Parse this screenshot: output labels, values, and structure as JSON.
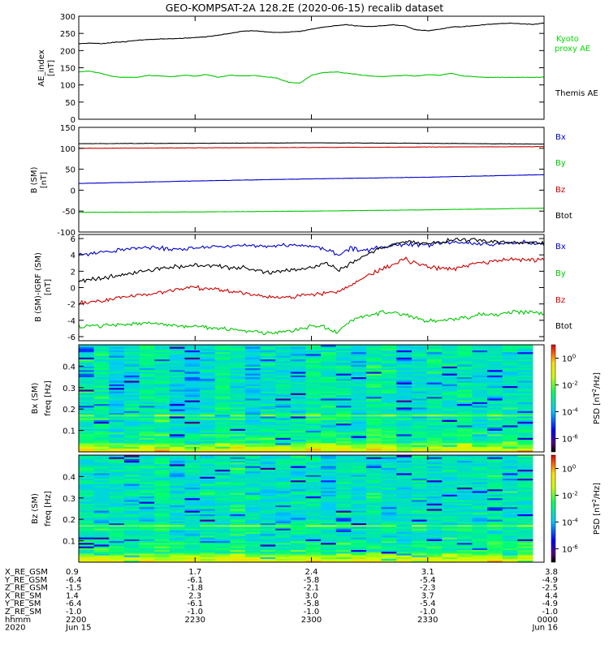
{
  "figure_title": "GEO-KOMPSAT-2A 128.2E (2020-06-15) recalib dataset",
  "colors": {
    "black": "#000000",
    "blue": "#0000cc",
    "red": "#cc0000",
    "green": "#00c800",
    "kyoto": "#00dd00"
  },
  "chart_data": [
    {
      "type": "line",
      "ylabel": [
        "AE_index",
        "[nT]"
      ],
      "ylim": [
        0,
        300
      ],
      "yticks": [
        0,
        50,
        100,
        150,
        200,
        250,
        300
      ],
      "xlim": [
        0,
        120
      ],
      "series": [
        {
          "name": "Kyoto proxy AE",
          "color": "#00c800",
          "x": [
            0,
            3,
            6,
            9,
            12,
            15,
            18,
            21,
            24,
            27,
            30,
            33,
            36,
            39,
            42,
            45,
            48,
            51,
            54,
            57,
            60,
            63,
            66,
            69,
            72,
            75,
            78,
            81,
            84,
            87,
            90,
            93,
            96,
            99,
            102,
            105,
            108,
            111,
            114,
            117,
            120
          ],
          "y": [
            138,
            140,
            133,
            124,
            122,
            122,
            128,
            126,
            124,
            128,
            126,
            130,
            122,
            128,
            126,
            128,
            124,
            120,
            108,
            105,
            128,
            136,
            138,
            134,
            130,
            126,
            124,
            126,
            128,
            126,
            130,
            128,
            134,
            126,
            124,
            122,
            122,
            122,
            122,
            122,
            122
          ]
        },
        {
          "name": "Themis AE",
          "color": "#000000",
          "x": [
            0,
            3,
            6,
            9,
            12,
            15,
            18,
            21,
            24,
            27,
            30,
            33,
            36,
            39,
            42,
            45,
            48,
            51,
            54,
            57,
            60,
            63,
            66,
            69,
            72,
            75,
            78,
            81,
            84,
            87,
            90,
            93,
            96,
            99,
            102,
            105,
            108,
            111,
            114,
            117,
            120
          ],
          "y": [
            220,
            222,
            220,
            224,
            226,
            230,
            232,
            234,
            234,
            236,
            238,
            240,
            245,
            250,
            256,
            258,
            255,
            252,
            254,
            256,
            262,
            268,
            272,
            275,
            272,
            270,
            272,
            275,
            272,
            260,
            258,
            262,
            268,
            270,
            272,
            276,
            278,
            280,
            278,
            276,
            280
          ]
        }
      ],
      "legend": [
        "Kyoto proxy AE",
        "Themis AE"
      ]
    },
    {
      "type": "line",
      "ylabel": [
        "B (SM)",
        "[nT]"
      ],
      "ylim": [
        -100,
        150
      ],
      "yticks": [
        -100,
        -50,
        0,
        50,
        100,
        150
      ],
      "xlim": [
        0,
        120
      ],
      "series": [
        {
          "name": "Bx",
          "color": "#0000cc",
          "x": [
            0,
            30,
            60,
            90,
            120
          ],
          "y": [
            16,
            22,
            27,
            31,
            37
          ]
        },
        {
          "name": "By",
          "color": "#00c800",
          "x": [
            0,
            30,
            60,
            90,
            120
          ],
          "y": [
            -53,
            -52,
            -50,
            -47,
            -43
          ]
        },
        {
          "name": "Bz",
          "color": "#cc0000",
          "x": [
            0,
            30,
            60,
            90,
            120
          ],
          "y": [
            100,
            101,
            102,
            103,
            104
          ]
        },
        {
          "name": "Btot",
          "color": "#000000",
          "x": [
            0,
            30,
            60,
            90,
            120
          ],
          "y": [
            111,
            112,
            113,
            112,
            110
          ]
        }
      ],
      "legend": [
        "Bx",
        "By",
        "Bz",
        "Btot"
      ]
    },
    {
      "type": "line",
      "ylabel": [
        "B (SM)-IGRF (SM)",
        "[nT]"
      ],
      "ylim": [
        -6.5,
        6.5
      ],
      "yticks": [
        -6,
        -4,
        -2,
        0,
        2,
        4,
        6
      ],
      "xlim": [
        0,
        120
      ],
      "series": [
        {
          "name": "Bx",
          "color": "#0000cc",
          "x": [
            0,
            6,
            12,
            18,
            24,
            30,
            36,
            42,
            48,
            54,
            60,
            64,
            67,
            70,
            74,
            78,
            84,
            90,
            96,
            102,
            108,
            114,
            120
          ],
          "y": [
            4.0,
            4.3,
            4.7,
            5.0,
            4.7,
            4.9,
            5.0,
            5.1,
            5.0,
            5.2,
            5.1,
            4.6,
            4.0,
            4.8,
            4.6,
            5.0,
            5.2,
            5.3,
            5.5,
            5.4,
            5.3,
            5.6,
            5.3
          ]
        },
        {
          "name": "By",
          "color": "#00c800",
          "x": [
            0,
            6,
            12,
            18,
            24,
            30,
            36,
            42,
            48,
            54,
            60,
            64,
            67,
            70,
            74,
            78,
            84,
            90,
            96,
            102,
            108,
            114,
            120
          ],
          "y": [
            -4.8,
            -4.6,
            -4.5,
            -4.3,
            -4.6,
            -4.7,
            -5.0,
            -5.2,
            -5.6,
            -5.4,
            -4.7,
            -4.9,
            -5.5,
            -4.0,
            -3.4,
            -3.1,
            -3.3,
            -4.2,
            -3.9,
            -3.5,
            -3.2,
            -3.0,
            -3.1
          ]
        },
        {
          "name": "Bz",
          "color": "#cc0000",
          "x": [
            0,
            6,
            12,
            18,
            24,
            30,
            36,
            42,
            48,
            54,
            60,
            64,
            67,
            70,
            74,
            78,
            84,
            90,
            96,
            102,
            108,
            114,
            120
          ],
          "y": [
            -2.0,
            -1.6,
            -1.1,
            -0.8,
            -0.3,
            0.0,
            -0.2,
            -0.6,
            -1.1,
            -1.2,
            -0.8,
            -0.6,
            -0.6,
            0.2,
            1.3,
            2.2,
            3.5,
            2.5,
            2.3,
            3.0,
            3.3,
            3.5,
            3.4
          ]
        },
        {
          "name": "Btot",
          "color": "#000000",
          "x": [
            0,
            6,
            12,
            18,
            24,
            30,
            36,
            42,
            48,
            54,
            60,
            64,
            67,
            70,
            74,
            78,
            84,
            90,
            96,
            102,
            108,
            114,
            120
          ],
          "y": [
            0.8,
            1.1,
            1.6,
            2.1,
            2.5,
            2.8,
            2.6,
            2.4,
            1.9,
            2.1,
            2.4,
            3.0,
            2.1,
            2.9,
            3.9,
            4.8,
            5.6,
            5.4,
            5.8,
            5.9,
            5.6,
            5.5,
            5.4
          ]
        }
      ],
      "legend": [
        "Bx",
        "By",
        "Bz",
        "Btot"
      ]
    },
    {
      "type": "heatmap",
      "ylabel": [
        "Bx (SM)",
        "freq [Hz]"
      ],
      "ylim": [
        0,
        0.5
      ],
      "yticks": [
        0.1,
        0.2,
        0.3,
        0.4
      ],
      "colorbar": {
        "label": "PSD [nT^2/Hz]",
        "ticks": [
          "10^0",
          "10^-2",
          "10^-4",
          "10^-6"
        ],
        "log_range": [
          -7,
          1
        ]
      },
      "description_level": "mean log10 PSD about -3.5, bright line near 0.17 Hz, strongest power below 0.03 Hz"
    },
    {
      "type": "heatmap",
      "ylabel": [
        "Bz (SM)",
        "freq [Hz]"
      ],
      "ylim": [
        0,
        0.5
      ],
      "yticks": [
        0.1,
        0.2,
        0.3,
        0.4
      ],
      "colorbar": {
        "label": "PSD [nT^2/Hz]",
        "ticks": [
          "10^0",
          "10^-2",
          "10^-4",
          "10^-6"
        ],
        "log_range": [
          -7,
          1
        ]
      },
      "description_level": "mean log10 PSD about -3.5, bright line near 0.17 Hz, strongest power below 0.03 Hz"
    }
  ],
  "x_axis": {
    "row_labels": [
      "X_RE_GSM",
      "Y_RE_GSM",
      "Z_RE_GSM",
      "X_RE_SM",
      "Y_RE_SM",
      "Z_RE_SM",
      "hhmm",
      "2020"
    ],
    "columns": [
      [
        "0.9",
        "-6.4",
        "-1.5",
        "1.4",
        "-6.4",
        "-1.0",
        "2200",
        "Jun 15"
      ],
      [
        "1.7",
        "-6.1",
        "-1.8",
        "2.3",
        "-6.1",
        "-1.0",
        "2230",
        ""
      ],
      [
        "2.4",
        "-5.8",
        "-2.1",
        "3.0",
        "-5.8",
        "-1.0",
        "2300",
        ""
      ],
      [
        "3.1",
        "-5.4",
        "-2.3",
        "3.7",
        "-5.4",
        "-1.0",
        "2330",
        ""
      ],
      [
        "3.8",
        "-4.9",
        "-2.5",
        "4.4",
        "-4.9",
        "-1.0",
        "0000",
        "Jun 16"
      ]
    ]
  }
}
